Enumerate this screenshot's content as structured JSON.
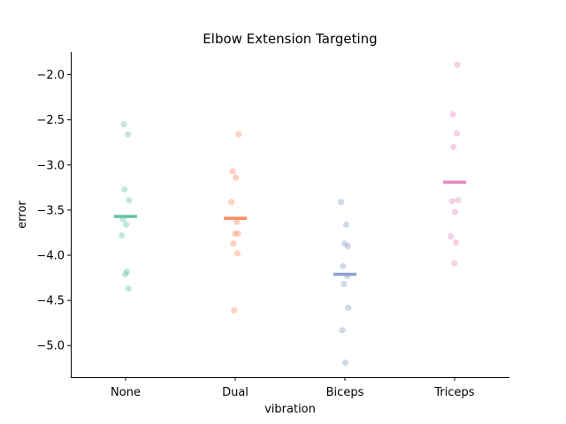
{
  "chart_data": {
    "type": "scatter",
    "title": "Elbow Extension Targeting",
    "xlabel": "vibration",
    "ylabel": "error",
    "categories": [
      "None",
      "Dual",
      "Biceps",
      "Triceps"
    ],
    "ylim": [
      -5.35,
      -1.75
    ],
    "yticks": [
      -5.0,
      -4.5,
      -4.0,
      -3.5,
      -3.0,
      -2.5,
      -2.0
    ],
    "ytick_labels": [
      "−5.0",
      "−4.5",
      "−4.0",
      "−3.5",
      "−3.0",
      "−2.5",
      "−2.0"
    ],
    "grid": false,
    "series": [
      {
        "category": "None",
        "color": "#66c2a5",
        "values": [
          -2.55,
          -2.66,
          -3.27,
          -3.39,
          -3.6,
          -3.66,
          -3.78,
          -4.18,
          -4.21,
          -4.37
        ],
        "mean": -3.57
      },
      {
        "category": "Dual",
        "color": "#fc8d62",
        "values": [
          -2.66,
          -3.07,
          -3.14,
          -3.41,
          -3.63,
          -3.76,
          -3.76,
          -3.87,
          -3.98,
          -4.61
        ],
        "mean": -3.59
      },
      {
        "category": "Biceps",
        "color": "#8da0cb",
        "values": [
          -3.41,
          -3.66,
          -3.87,
          -3.9,
          -4.12,
          -4.23,
          -4.32,
          -4.58,
          -4.83,
          -5.19
        ],
        "mean": -4.21
      },
      {
        "category": "Triceps",
        "color": "#e78ac3",
        "values": [
          -1.89,
          -2.44,
          -2.65,
          -2.8,
          -3.39,
          -3.4,
          -3.52,
          -3.79,
          -3.86,
          -4.09
        ],
        "mean": -3.19
      }
    ]
  }
}
